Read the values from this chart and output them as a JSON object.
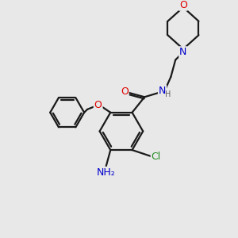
{
  "bg_color": "#e8e8e8",
  "bond_color": "#1a1a1a",
  "atom_colors": {
    "O": "#e00000",
    "N": "#0000cc",
    "Cl": "#228b22",
    "H": "#606060"
  },
  "figsize": [
    3.0,
    3.0
  ],
  "dpi": 100,
  "lw": 1.6,
  "fontsize": 8.5
}
